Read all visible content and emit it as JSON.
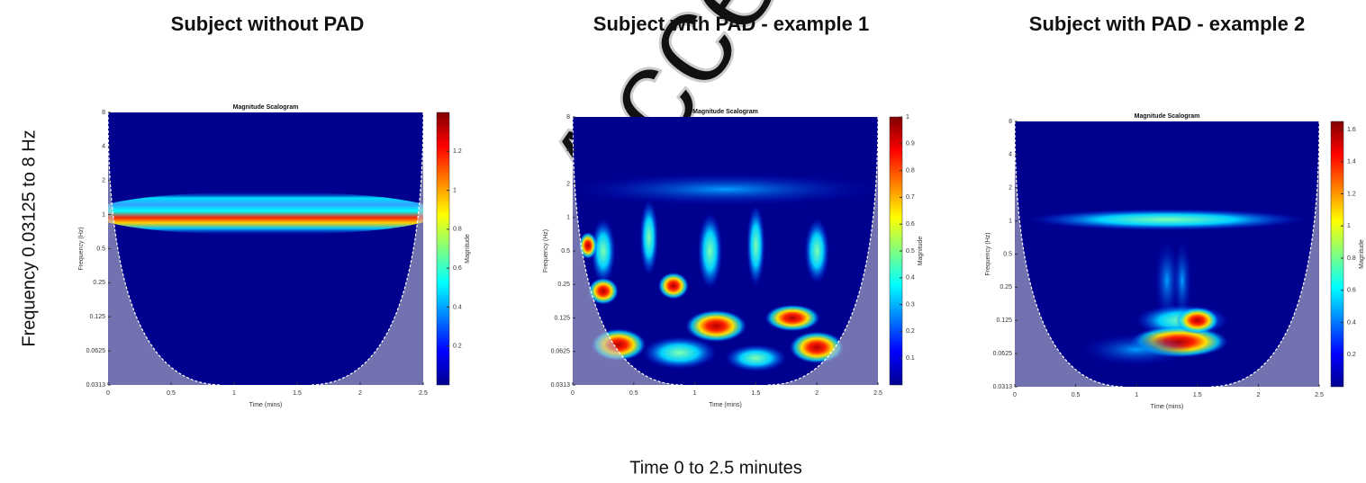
{
  "figure_y_label": "Frequency 0.03125 to 8 Hz",
  "figure_x_label": "Time 0 to 2.5 minutes",
  "watermark": "Accepted",
  "chart_data": [
    {
      "type": "heatmap",
      "heading": "Subject without PAD",
      "title": "Magnitude Scalogram",
      "x_label": "Time (mins)",
      "y_label": "Frequency (Hz)",
      "colorbar_label": "Magnitude",
      "colormap": "jet",
      "yscale": "log",
      "xlim": [
        0,
        2.5
      ],
      "xticks": [
        0,
        0.5,
        1,
        1.5,
        2,
        2.5
      ],
      "ylim": [
        0.03125,
        8
      ],
      "yticks": [
        {
          "value": 0.03125,
          "label": "0.0313"
        },
        0.0625,
        0.125,
        0.25,
        0.5,
        1,
        2,
        4,
        8
      ],
      "clim": [
        0,
        1.4
      ],
      "cticks": [
        0.2,
        0.4,
        0.6,
        0.8,
        1,
        1.2
      ]
    },
    {
      "type": "heatmap",
      "heading": "Subject with PAD - example 1",
      "title": "Magnitude Scalogram",
      "x_label": "Time (mins)",
      "y_label": "Frequency (Hz)",
      "colorbar_label": "Magnitude",
      "colormap": "jet",
      "yscale": "log",
      "xlim": [
        0,
        2.5
      ],
      "xticks": [
        0,
        0.5,
        1,
        1.5,
        2,
        2.5
      ],
      "ylim": [
        0.03125,
        8
      ],
      "yticks": [
        {
          "value": 0.03125,
          "label": "0.0313"
        },
        0.0625,
        0.125,
        0.25,
        0.5,
        1,
        2,
        4,
        8
      ],
      "clim": [
        0,
        1
      ],
      "cticks": [
        0.1,
        0.2,
        0.3,
        0.4,
        0.5,
        0.6,
        0.7,
        0.8,
        0.9,
        1
      ]
    },
    {
      "type": "heatmap",
      "heading": "Subject with PAD - example 2",
      "title": "Magnitude Scalogram",
      "x_label": "Time (mins)",
      "y_label": "Frequency (Hz)",
      "colorbar_label": "Magnitude",
      "colormap": "jet",
      "yscale": "log",
      "xlim": [
        0,
        2.5
      ],
      "xticks": [
        0,
        0.5,
        1,
        1.5,
        2,
        2.5
      ],
      "ylim": [
        0.03125,
        8
      ],
      "yticks": [
        {
          "value": 0.03125,
          "label": "0.0313"
        },
        0.0625,
        0.125,
        0.25,
        0.5,
        1,
        2,
        4,
        8
      ],
      "clim": [
        0,
        1.65
      ],
      "cticks": [
        0.2,
        0.4,
        0.6,
        0.8,
        1,
        1.2,
        1.4,
        1.6
      ]
    }
  ]
}
